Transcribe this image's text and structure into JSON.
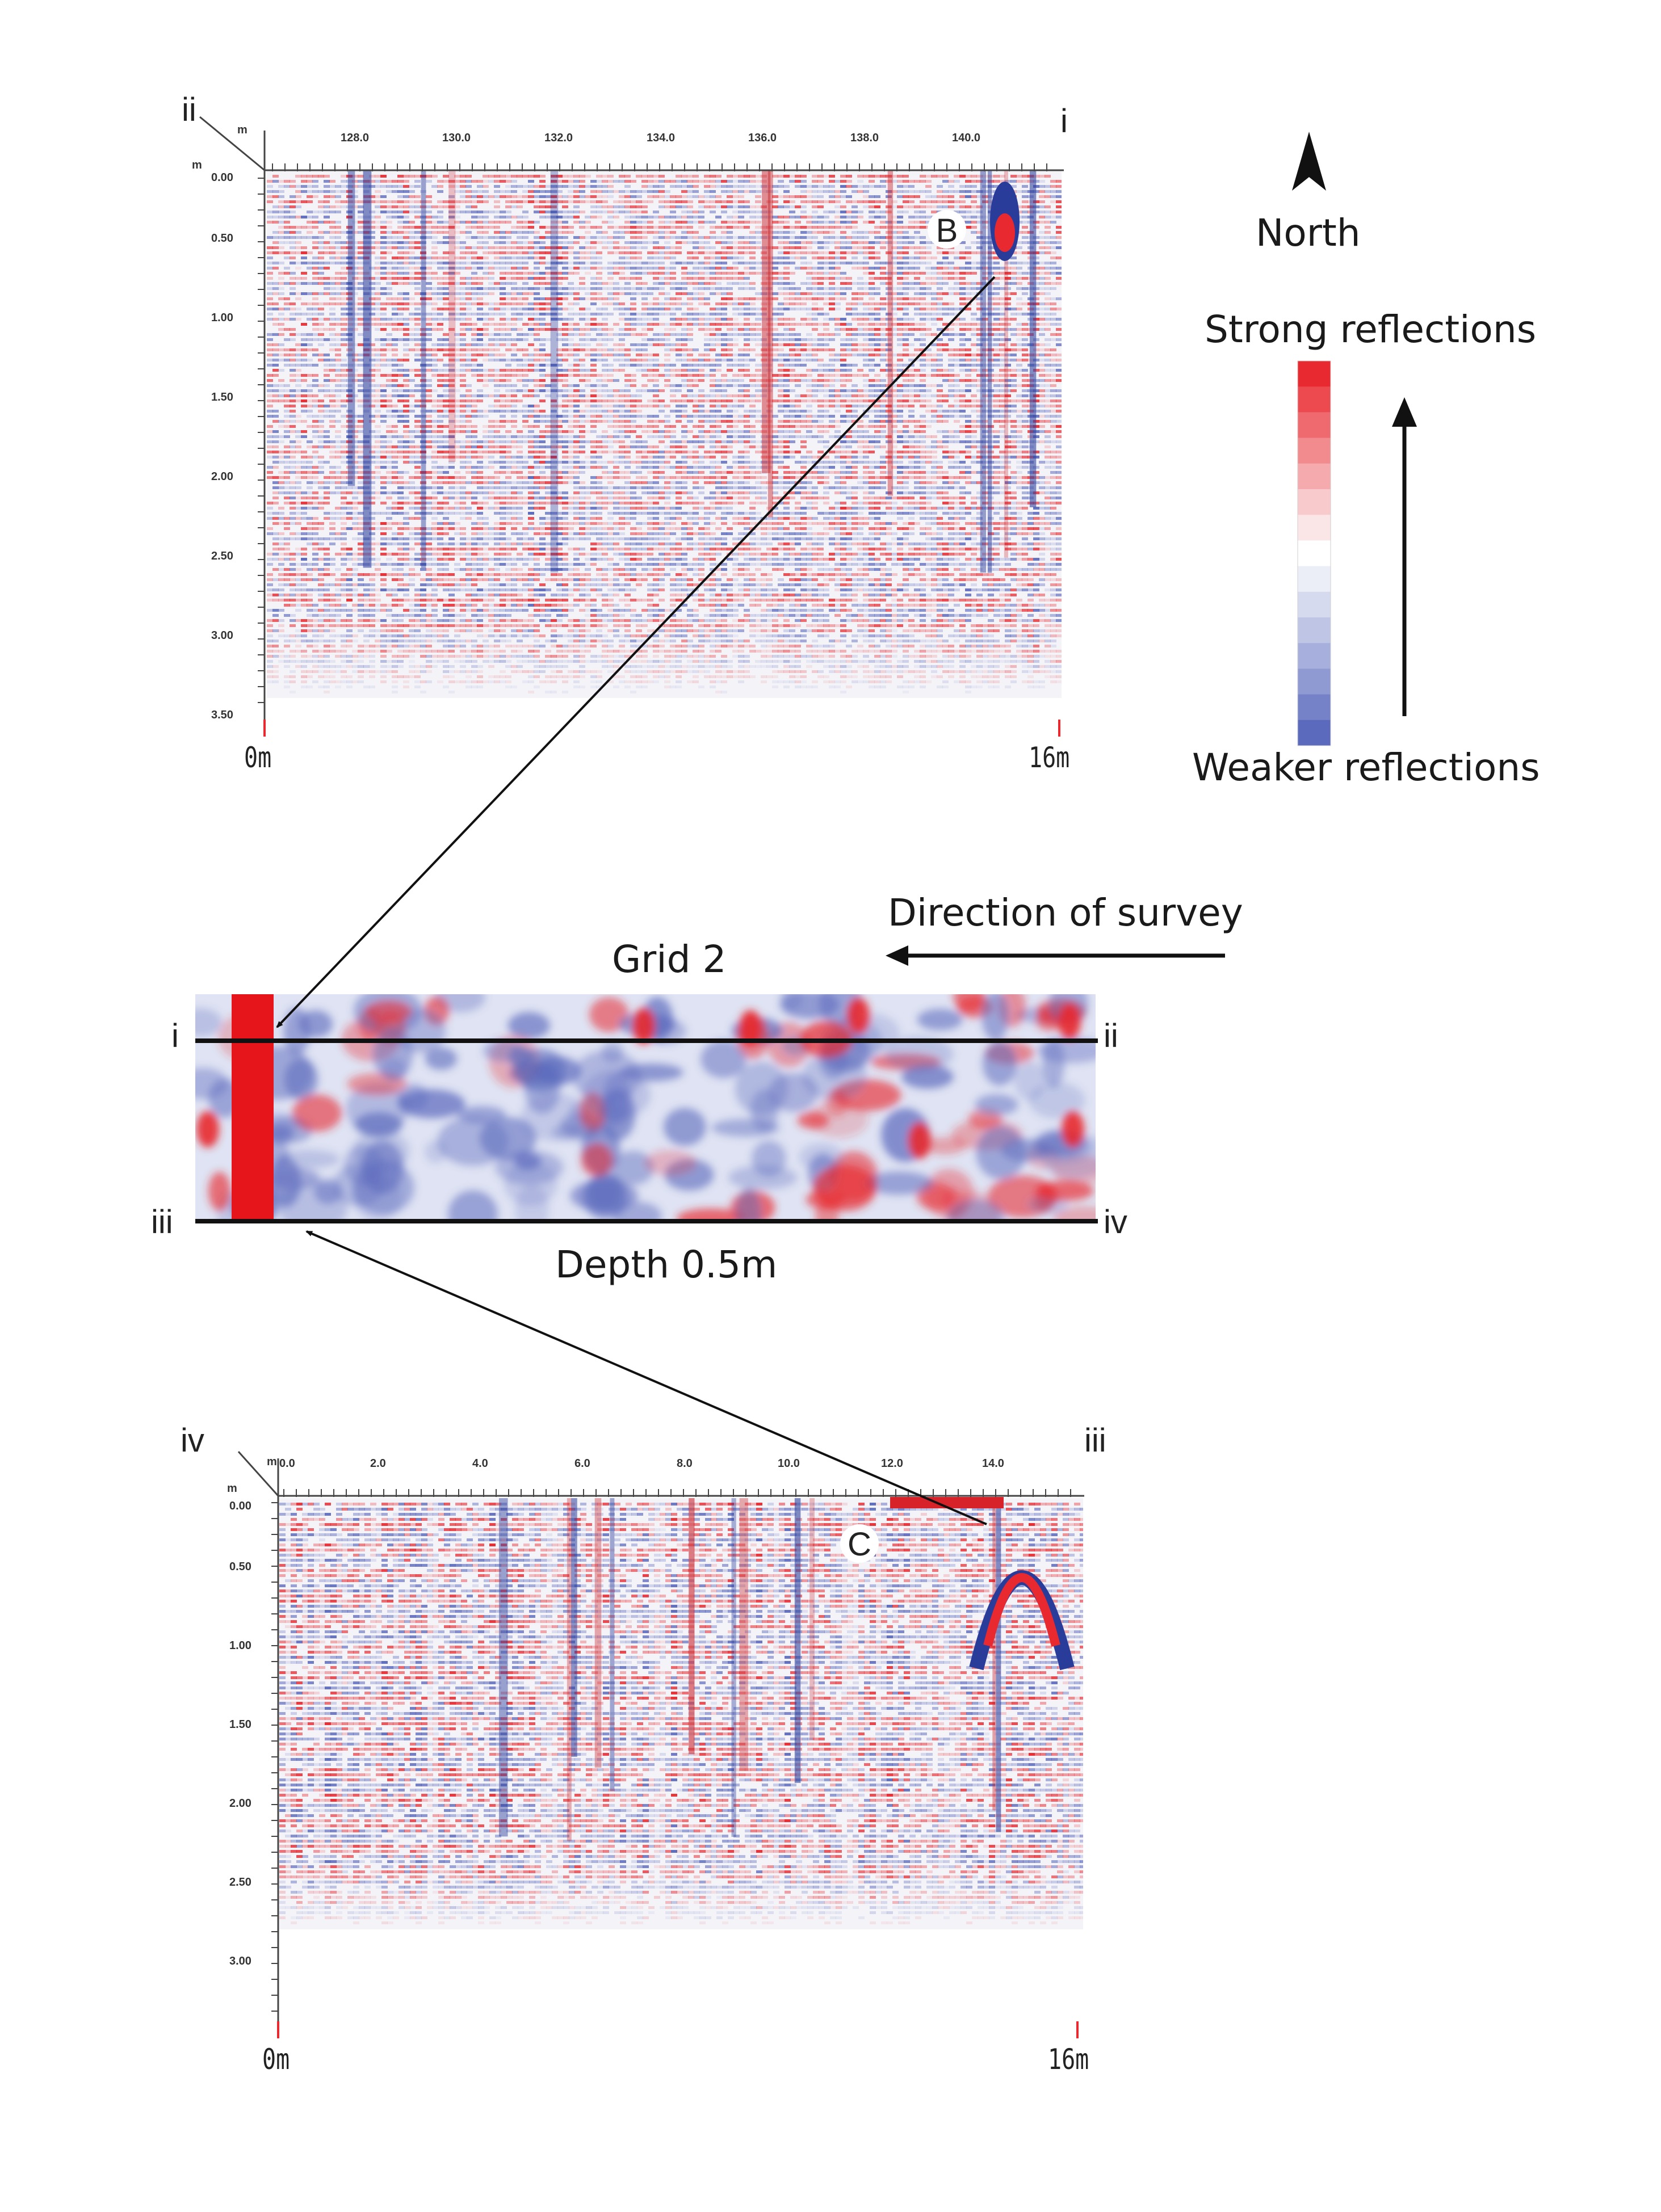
{
  "profile_top": {
    "corner_left": "ii",
    "corner_right": "i",
    "unit_x": "m",
    "unit_y": "m",
    "x_ticks": [
      "128.0",
      "130.0",
      "132.0",
      "134.0",
      "136.0",
      "138.0",
      "140.0"
    ],
    "y_ticks": [
      "0.00",
      "0.50",
      "1.00",
      "1.50",
      "2.00",
      "2.50",
      "3.00",
      "3.50"
    ],
    "start_label": "0m",
    "end_label": "16m",
    "anomaly_label": "B"
  },
  "profile_bottom": {
    "corner_left": "iv",
    "corner_right": "iii",
    "unit_x": "m",
    "unit_y": "m",
    "x_ticks": [
      "0.0",
      "2.0",
      "4.0",
      "6.0",
      "8.0",
      "10.0",
      "12.0",
      "14.0"
    ],
    "y_ticks": [
      "0.00",
      "0.50",
      "1.00",
      "1.50",
      "2.00",
      "2.50",
      "3.00"
    ],
    "start_label": "0m",
    "end_label": "16m",
    "anomaly_label": "C"
  },
  "grid": {
    "title": "Grid 2",
    "depth_label": "Depth 0.5m",
    "label_top_left": "i",
    "label_top_right": "ii",
    "label_bottom_left": "iii",
    "label_bottom_right": "iv",
    "marker": "x"
  },
  "legend": {
    "north_label": "North",
    "strong_label": "Strong reflections",
    "weak_label": "Weaker reflections",
    "scale_colors": [
      "#e8292f",
      "#ec4a4f",
      "#ef6a6e",
      "#f28b8e",
      "#f5abad",
      "#f8cacc",
      "#fbe6e7",
      "#ffffff",
      "#eceef7",
      "#d6daee",
      "#bfc5e5",
      "#a7b0dc",
      "#8f9ad2",
      "#7682c8",
      "#5c6abd"
    ]
  },
  "direction_label": "Direction of survey",
  "colors": {
    "strong": "#e8292f",
    "weak": "#5c6abd",
    "ink": "#111111"
  }
}
